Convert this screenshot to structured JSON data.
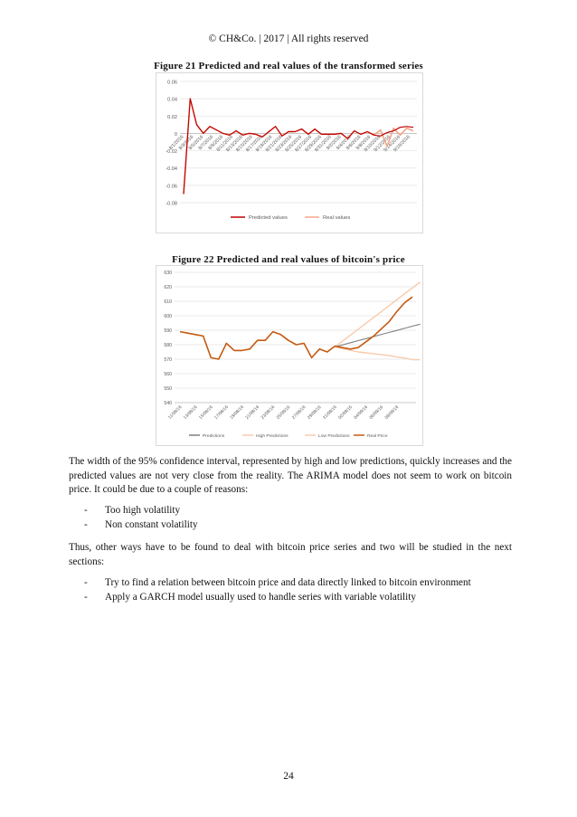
{
  "header": "© CH&Co. | 2017 | All rights reserved",
  "figure21": {
    "caption": "Figure 21 Predicted and real values of the transformed series"
  },
  "figure22": {
    "caption": "Figure 22 Predicted and real values of bitcoin's price"
  },
  "paragraph1": "The width of the 95% confidence interval, represented by high and low predictions, quickly increases and the predicted values are not very close from the reality. The ARIMA model does not seem to work on bitcoin price. It could be due to a couple of reasons:",
  "list1": [
    "Too high volatility",
    "Non constant volatility"
  ],
  "paragraph2": "Thus, other ways have to be found to deal with bitcoin price series and two will be studied in the next sections:",
  "list2": [
    "Try to find a relation between bitcoin price and data directly linked to bitcoin environment",
    "Apply a GARCH model usually used to handle series with variable volatility"
  ],
  "page_number": "24",
  "colors": {
    "predicted_fig21": "#c00000",
    "real_fig21": "#f4a58a",
    "predictions": "#7f7f7f",
    "high_predictions": "#f8cbad",
    "low_predictions": "#f8cbad",
    "real_price": "#c55a11"
  },
  "chart_data": [
    {
      "type": "line",
      "ylim": [
        -0.08,
        0.06
      ],
      "yticks": [
        "0.06",
        "0.04",
        "0.02",
        "0",
        "-0.02",
        "-0.04",
        "-0.06",
        "-0.08"
      ],
      "xticks": [
        "8/1/2016",
        "8/3/2016",
        "8/5/2016",
        "8/7/2016",
        "8/9/2016",
        "8/11/2016",
        "8/13/2016",
        "8/15/2016",
        "8/17/2016",
        "8/19/2016",
        "8/21/2016",
        "8/23/2016",
        "8/25/2016",
        "8/27/2016",
        "8/29/2016",
        "8/31/2016",
        "9/2/2016",
        "9/4/2016",
        "9/6/2016",
        "9/8/2016",
        "9/10/2016",
        "9/12/2016",
        "9/14/2016",
        "9/16/2016"
      ],
      "legend_position": "bottom",
      "series": [
        {
          "name": "Predicted values",
          "values": [
            -0.07,
            0.04,
            0.01,
            0.0,
            0.008,
            0.004,
            0.0,
            -0.002,
            0.003,
            -0.002,
            0.0,
            -0.001,
            -0.004,
            0.002,
            0.008,
            -0.003,
            0.002,
            0.002,
            0.005,
            -0.001,
            0.005,
            -0.001,
            -0.001,
            -0.001,
            0.0,
            -0.006,
            0.003,
            -0.001,
            0.002,
            -0.002,
            -0.003,
            0.001,
            0.003,
            0.007,
            0.008,
            0.007
          ]
        },
        {
          "name": "Real values",
          "values": [
            -0.07,
            0.04,
            0.01,
            0.0,
            0.008,
            0.004,
            0.0,
            -0.002,
            0.003,
            -0.002,
            0.0,
            -0.001,
            -0.004,
            0.002,
            0.008,
            -0.003,
            0.002,
            0.002,
            0.005,
            -0.001,
            0.005,
            -0.001,
            -0.001,
            -0.001,
            0.0,
            -0.006,
            0.003,
            -0.001,
            0.002,
            -0.002,
            0.004,
            -0.015,
            0.006,
            -0.002,
            0.006,
            0.003
          ]
        }
      ]
    },
    {
      "type": "line",
      "ylim": [
        540,
        630
      ],
      "yticks": [
        "630",
        "620",
        "610",
        "600",
        "590",
        "580",
        "570",
        "560",
        "550",
        "540"
      ],
      "xticks": [
        "11/08/16",
        "13/08/16",
        "15/08/16",
        "17/08/16",
        "19/08/16",
        "21/08/16",
        "23/08/16",
        "25/08/16",
        "27/08/16",
        "29/08/16",
        "31/08/16",
        "02/09/16",
        "04/09/16",
        "06/09/16",
        "08/09/16"
      ],
      "legend_position": "bottom",
      "series": [
        {
          "name": "Predictions",
          "start_index": 20,
          "values": [
            578.5,
            579.9,
            581.4,
            582.8,
            584.2,
            585.6,
            587.1,
            588.5,
            589.9,
            591.3,
            592.8,
            594.2
          ]
        },
        {
          "name": "High Predictions",
          "start_index": 20,
          "values": [
            578.5,
            582.6,
            586.6,
            590.7,
            594.8,
            598.9,
            602.9,
            607.0,
            611.1,
            615.2,
            619.2,
            623.3
          ]
        },
        {
          "name": "Low Predictions",
          "start_index": 20,
          "values": [
            578.5,
            577.2,
            576.1,
            575.0,
            574.4,
            573.8,
            573.2,
            572.5,
            571.5,
            570.8,
            569.6,
            569.6
          ]
        },
        {
          "name": "Real Price",
          "values": [
            589,
            588,
            587,
            586,
            571,
            570,
            581,
            576,
            576,
            577,
            583,
            583,
            589,
            587,
            583,
            580,
            581,
            571,
            577,
            575,
            579,
            578,
            577,
            578,
            582,
            586,
            591,
            596,
            603,
            609,
            613
          ]
        }
      ]
    }
  ]
}
